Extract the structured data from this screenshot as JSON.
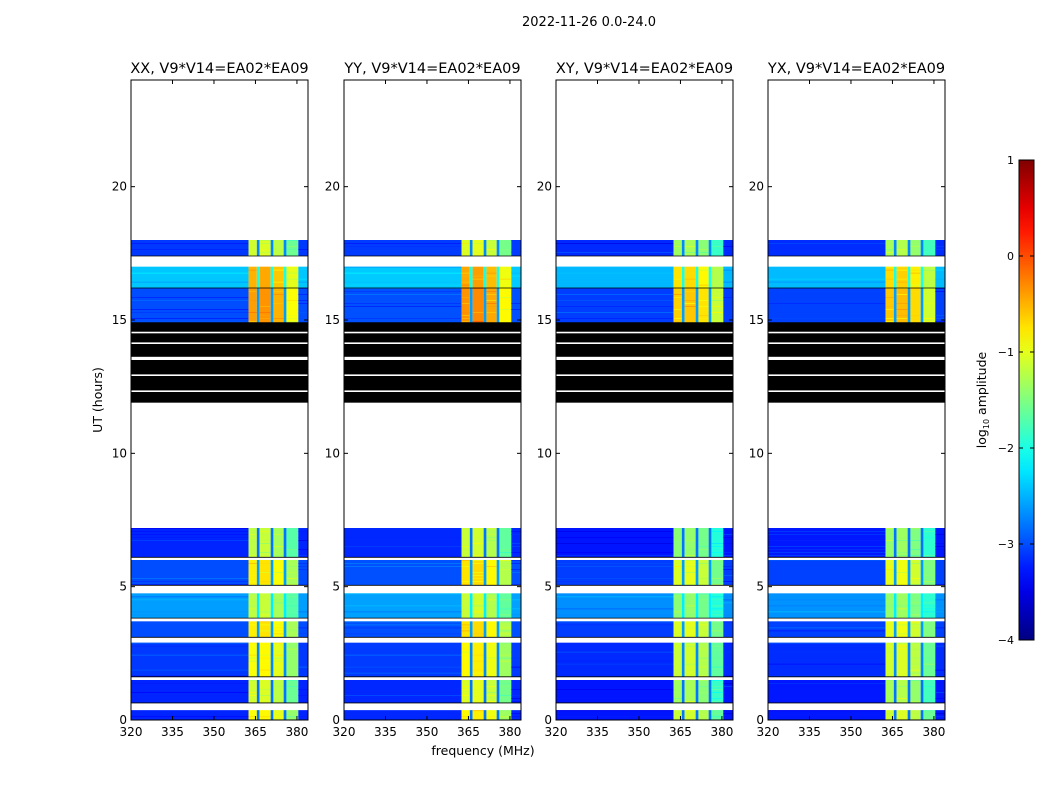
{
  "chart_data": {
    "type": "heatmap",
    "title": "2022-11-26 0.0-24.0",
    "xlabel": "frequency (MHz)",
    "ylabel": "UT (hours)",
    "xlim": [
      320,
      384
    ],
    "ylim": [
      0,
      24
    ],
    "xticks": [
      320,
      335,
      350,
      365,
      380
    ],
    "yticks": [
      0,
      5,
      10,
      15,
      20
    ],
    "panels": [
      {
        "title": "XX, V9*V14=EA02*EA09",
        "level_offset": 0.0
      },
      {
        "title": "YY, V9*V14=EA02*EA09",
        "level_offset": 0.05
      },
      {
        "title": "XY, V9*V14=EA02*EA09",
        "level_offset": -0.25
      },
      {
        "title": "YX, V9*V14=EA02*EA09",
        "level_offset": -0.2
      }
    ],
    "freq_bands": [
      {
        "from": 320,
        "to": 362.5,
        "kind": "background"
      },
      {
        "from": 362.5,
        "to": 365.5,
        "kind": "rfi",
        "boost": 0.1
      },
      {
        "from": 365.5,
        "to": 366.5,
        "kind": "notch"
      },
      {
        "from": 366.5,
        "to": 370.5,
        "kind": "rfi",
        "boost": 0.15
      },
      {
        "from": 370.5,
        "to": 371.5,
        "kind": "notch"
      },
      {
        "from": 371.5,
        "to": 375.2,
        "kind": "rfi",
        "boost": 0.0
      },
      {
        "from": 375.2,
        "to": 376.2,
        "kind": "notch"
      },
      {
        "from": 376.2,
        "to": 380.5,
        "kind": "rfi",
        "boost": -0.4
      },
      {
        "from": 380.5,
        "to": 384,
        "kind": "background"
      }
    ],
    "time_segments": [
      {
        "from": 0.0,
        "to": 0.37,
        "kind": "data",
        "bg": -3.2,
        "rfi": -1.0
      },
      {
        "from": 0.37,
        "to": 0.64,
        "kind": "no_data"
      },
      {
        "from": 0.64,
        "to": 1.5,
        "kind": "data",
        "bg": -3.2,
        "rfi": -1.2
      },
      {
        "from": 1.5,
        "to": 1.62,
        "kind": "no_data"
      },
      {
        "from": 1.62,
        "to": 2.9,
        "kind": "data",
        "bg": -3.1,
        "rfi": -1.0
      },
      {
        "from": 2.9,
        "to": 3.1,
        "kind": "no_data"
      },
      {
        "from": 3.1,
        "to": 3.7,
        "kind": "data",
        "bg": -3.0,
        "rfi": -0.9
      },
      {
        "from": 3.7,
        "to": 3.82,
        "kind": "no_data"
      },
      {
        "from": 3.82,
        "to": 4.75,
        "kind": "data",
        "bg": -2.6,
        "rfi": -1.3
      },
      {
        "from": 4.75,
        "to": 5.05,
        "kind": "no_data"
      },
      {
        "from": 5.05,
        "to": 6.0,
        "kind": "data",
        "bg": -3.0,
        "rfi": -0.9
      },
      {
        "from": 6.0,
        "to": 6.1,
        "kind": "no_data"
      },
      {
        "from": 6.1,
        "to": 7.2,
        "kind": "data",
        "bg": -3.2,
        "rfi": -1.3
      },
      {
        "from": 7.2,
        "to": 11.9,
        "kind": "no_data"
      },
      {
        "from": 11.9,
        "to": 12.3,
        "kind": "flagged"
      },
      {
        "from": 12.3,
        "to": 12.36,
        "kind": "no_data"
      },
      {
        "from": 12.36,
        "to": 12.9,
        "kind": "flagged"
      },
      {
        "from": 12.9,
        "to": 12.96,
        "kind": "no_data"
      },
      {
        "from": 12.96,
        "to": 13.5,
        "kind": "flagged"
      },
      {
        "from": 13.5,
        "to": 13.62,
        "kind": "no_data"
      },
      {
        "from": 13.62,
        "to": 14.1,
        "kind": "flagged"
      },
      {
        "from": 14.1,
        "to": 14.16,
        "kind": "no_data"
      },
      {
        "from": 14.16,
        "to": 14.5,
        "kind": "flagged"
      },
      {
        "from": 14.5,
        "to": 14.56,
        "kind": "no_data"
      },
      {
        "from": 14.56,
        "to": 14.9,
        "kind": "flagged"
      },
      {
        "from": 14.9,
        "to": 16.2,
        "kind": "data",
        "bg": -3.0,
        "rfi": -0.5
      },
      {
        "from": 16.2,
        "to": 17.0,
        "kind": "data",
        "bg": -2.4,
        "rfi": -0.6
      },
      {
        "from": 17.0,
        "to": 17.4,
        "kind": "no_data"
      },
      {
        "from": 17.4,
        "to": 18.0,
        "kind": "data",
        "bg": -3.1,
        "rfi": -1.2
      },
      {
        "from": 18.0,
        "to": 24.0,
        "kind": "no_data"
      }
    ],
    "colorbar": {
      "label": "log10 amplitude",
      "label_main": "log",
      "label_sub": "10",
      "label_rest": " amplitude",
      "range": [
        -4,
        1
      ],
      "ticks": [
        "1",
        "0",
        "−1",
        "−2",
        "−3",
        "−4"
      ],
      "tick_values": [
        1,
        0,
        -1,
        -2,
        -3,
        -4
      ],
      "colormap": "jet"
    }
  }
}
